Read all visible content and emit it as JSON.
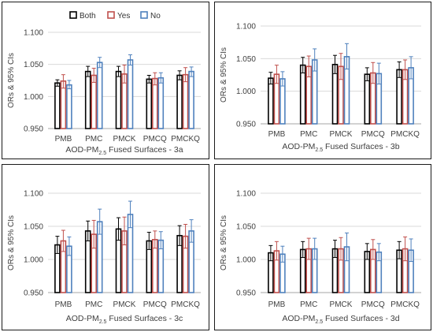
{
  "colors": {
    "both": "#000000",
    "yes": "#c0504d",
    "no": "#4f81bd",
    "grid": "#d9d9d9",
    "axis": "#a6a6a6"
  },
  "legend": [
    {
      "key": "both",
      "label": "Both"
    },
    {
      "key": "yes",
      "label": "Yes"
    },
    {
      "key": "no",
      "label": "No"
    }
  ],
  "chart_data": [
    {
      "type": "bar",
      "panel": "3a",
      "title_base": "AOD-PM",
      "title_sub": "2.5",
      "title_rest": " Fused Surfaces - 3a",
      "ylabel": "ORs & 95% CIs",
      "ylim": [
        0.95,
        1.1
      ],
      "yticks": [
        "0.950",
        "1.000",
        "1.050",
        "1.100"
      ],
      "legend_position": "top",
      "categories": [
        "PMB",
        "PMC",
        "PMCK",
        "PMCQ",
        "PMCKQ"
      ],
      "series": [
        {
          "name": "Both",
          "values": [
            1.021,
            1.039,
            1.039,
            1.027,
            1.033
          ],
          "lower": [
            1.016,
            1.031,
            1.031,
            1.021,
            1.026
          ],
          "upper": [
            1.026,
            1.047,
            1.047,
            1.033,
            1.04
          ]
        },
        {
          "name": "Yes",
          "values": [
            1.024,
            1.033,
            1.035,
            1.028,
            1.034
          ],
          "lower": [
            1.013,
            1.022,
            1.021,
            1.018,
            1.023
          ],
          "upper": [
            1.034,
            1.044,
            1.049,
            1.037,
            1.045
          ]
        },
        {
          "name": "No",
          "values": [
            1.018,
            1.053,
            1.057,
            1.029,
            1.039
          ],
          "lower": [
            1.012,
            1.045,
            1.049,
            1.021,
            1.031
          ],
          "upper": [
            1.025,
            1.061,
            1.065,
            1.037,
            1.046
          ]
        }
      ]
    },
    {
      "type": "bar",
      "panel": "3b",
      "title_base": "AOD-PM",
      "title_sub": "2.5",
      "title_rest": " Fused Surfaces - 3b",
      "ylabel": "ORs & 95% CIs",
      "ylim": [
        0.95,
        1.1
      ],
      "yticks": [
        "0.950",
        "1.000",
        "1.050",
        "1.100"
      ],
      "categories": [
        "PMB",
        "PMC",
        "PMCK",
        "PMCQ",
        "PMCKQ"
      ],
      "series": [
        {
          "name": "Both",
          "values": [
            1.02,
            1.04,
            1.041,
            1.026,
            1.033
          ],
          "lower": [
            1.011,
            1.028,
            1.027,
            1.016,
            1.021
          ],
          "upper": [
            1.029,
            1.052,
            1.055,
            1.036,
            1.045
          ]
        },
        {
          "name": "Yes",
          "values": [
            1.026,
            1.038,
            1.038,
            1.028,
            1.033
          ],
          "lower": [
            1.012,
            1.022,
            1.018,
            1.012,
            1.018
          ],
          "upper": [
            1.04,
            1.054,
            1.058,
            1.044,
            1.048
          ]
        },
        {
          "name": "No",
          "values": [
            1.019,
            1.048,
            1.053,
            1.027,
            1.036
          ],
          "lower": [
            1.008,
            1.031,
            1.034,
            1.011,
            1.019
          ],
          "upper": [
            1.03,
            1.065,
            1.073,
            1.043,
            1.053
          ]
        }
      ]
    },
    {
      "type": "bar",
      "panel": "3c",
      "title_base": "AOD-PM",
      "title_sub": "2.5",
      "title_rest": " Fused Surfaces - 3c",
      "ylabel": "ORs & 95% CIs",
      "ylim": [
        0.95,
        1.1
      ],
      "yticks": [
        "0.950",
        "1.000",
        "1.050",
        "1.100"
      ],
      "categories": [
        "PMB",
        "PMC",
        "PMCK",
        "PMCQ",
        "PMCKQ"
      ],
      "series": [
        {
          "name": "Both",
          "values": [
            1.022,
            1.043,
            1.046,
            1.028,
            1.036
          ],
          "lower": [
            1.009,
            1.028,
            1.029,
            1.015,
            1.021
          ],
          "upper": [
            1.035,
            1.058,
            1.063,
            1.041,
            1.051
          ]
        },
        {
          "name": "Yes",
          "values": [
            1.028,
            1.038,
            1.043,
            1.03,
            1.035
          ],
          "lower": [
            1.012,
            1.017,
            1.022,
            1.017,
            1.017
          ],
          "upper": [
            1.044,
            1.059,
            1.064,
            1.043,
            1.053
          ]
        },
        {
          "name": "No",
          "values": [
            1.02,
            1.057,
            1.068,
            1.029,
            1.043
          ],
          "lower": [
            1.006,
            1.038,
            1.048,
            1.016,
            1.026
          ],
          "upper": [
            1.034,
            1.076,
            1.088,
            1.042,
            1.06
          ]
        }
      ]
    },
    {
      "type": "bar",
      "panel": "3d",
      "title_base": "AOD-PM",
      "title_sub": "2.5",
      "title_rest": " Fused Surfaces - 3d",
      "ylabel": "ORs & 95% CIs",
      "ylim": [
        0.95,
        1.1
      ],
      "yticks": [
        "0.950",
        "1.000",
        "1.050",
        "1.100"
      ],
      "categories": [
        "PMB",
        "PMC",
        "PMCK",
        "PMCQ",
        "PMCKQ"
      ],
      "series": [
        {
          "name": "Both",
          "values": [
            1.01,
            1.015,
            1.016,
            1.012,
            1.014
          ],
          "lower": [
            0.998,
            1.003,
            1.003,
            1.0,
            1.001
          ],
          "upper": [
            1.021,
            1.027,
            1.029,
            1.024,
            1.027
          ]
        },
        {
          "name": "Yes",
          "values": [
            1.013,
            1.016,
            1.016,
            1.015,
            1.016
          ],
          "lower": [
            0.999,
            1.0,
            0.999,
            1.0,
            0.998
          ],
          "upper": [
            1.027,
            1.032,
            1.033,
            1.03,
            1.034
          ]
        },
        {
          "name": "No",
          "values": [
            1.008,
            1.016,
            1.019,
            1.011,
            1.014
          ],
          "lower": [
            0.996,
            1.0,
            0.998,
            0.998,
            0.997
          ],
          "upper": [
            1.02,
            1.032,
            1.04,
            1.024,
            1.031
          ]
        }
      ]
    }
  ]
}
